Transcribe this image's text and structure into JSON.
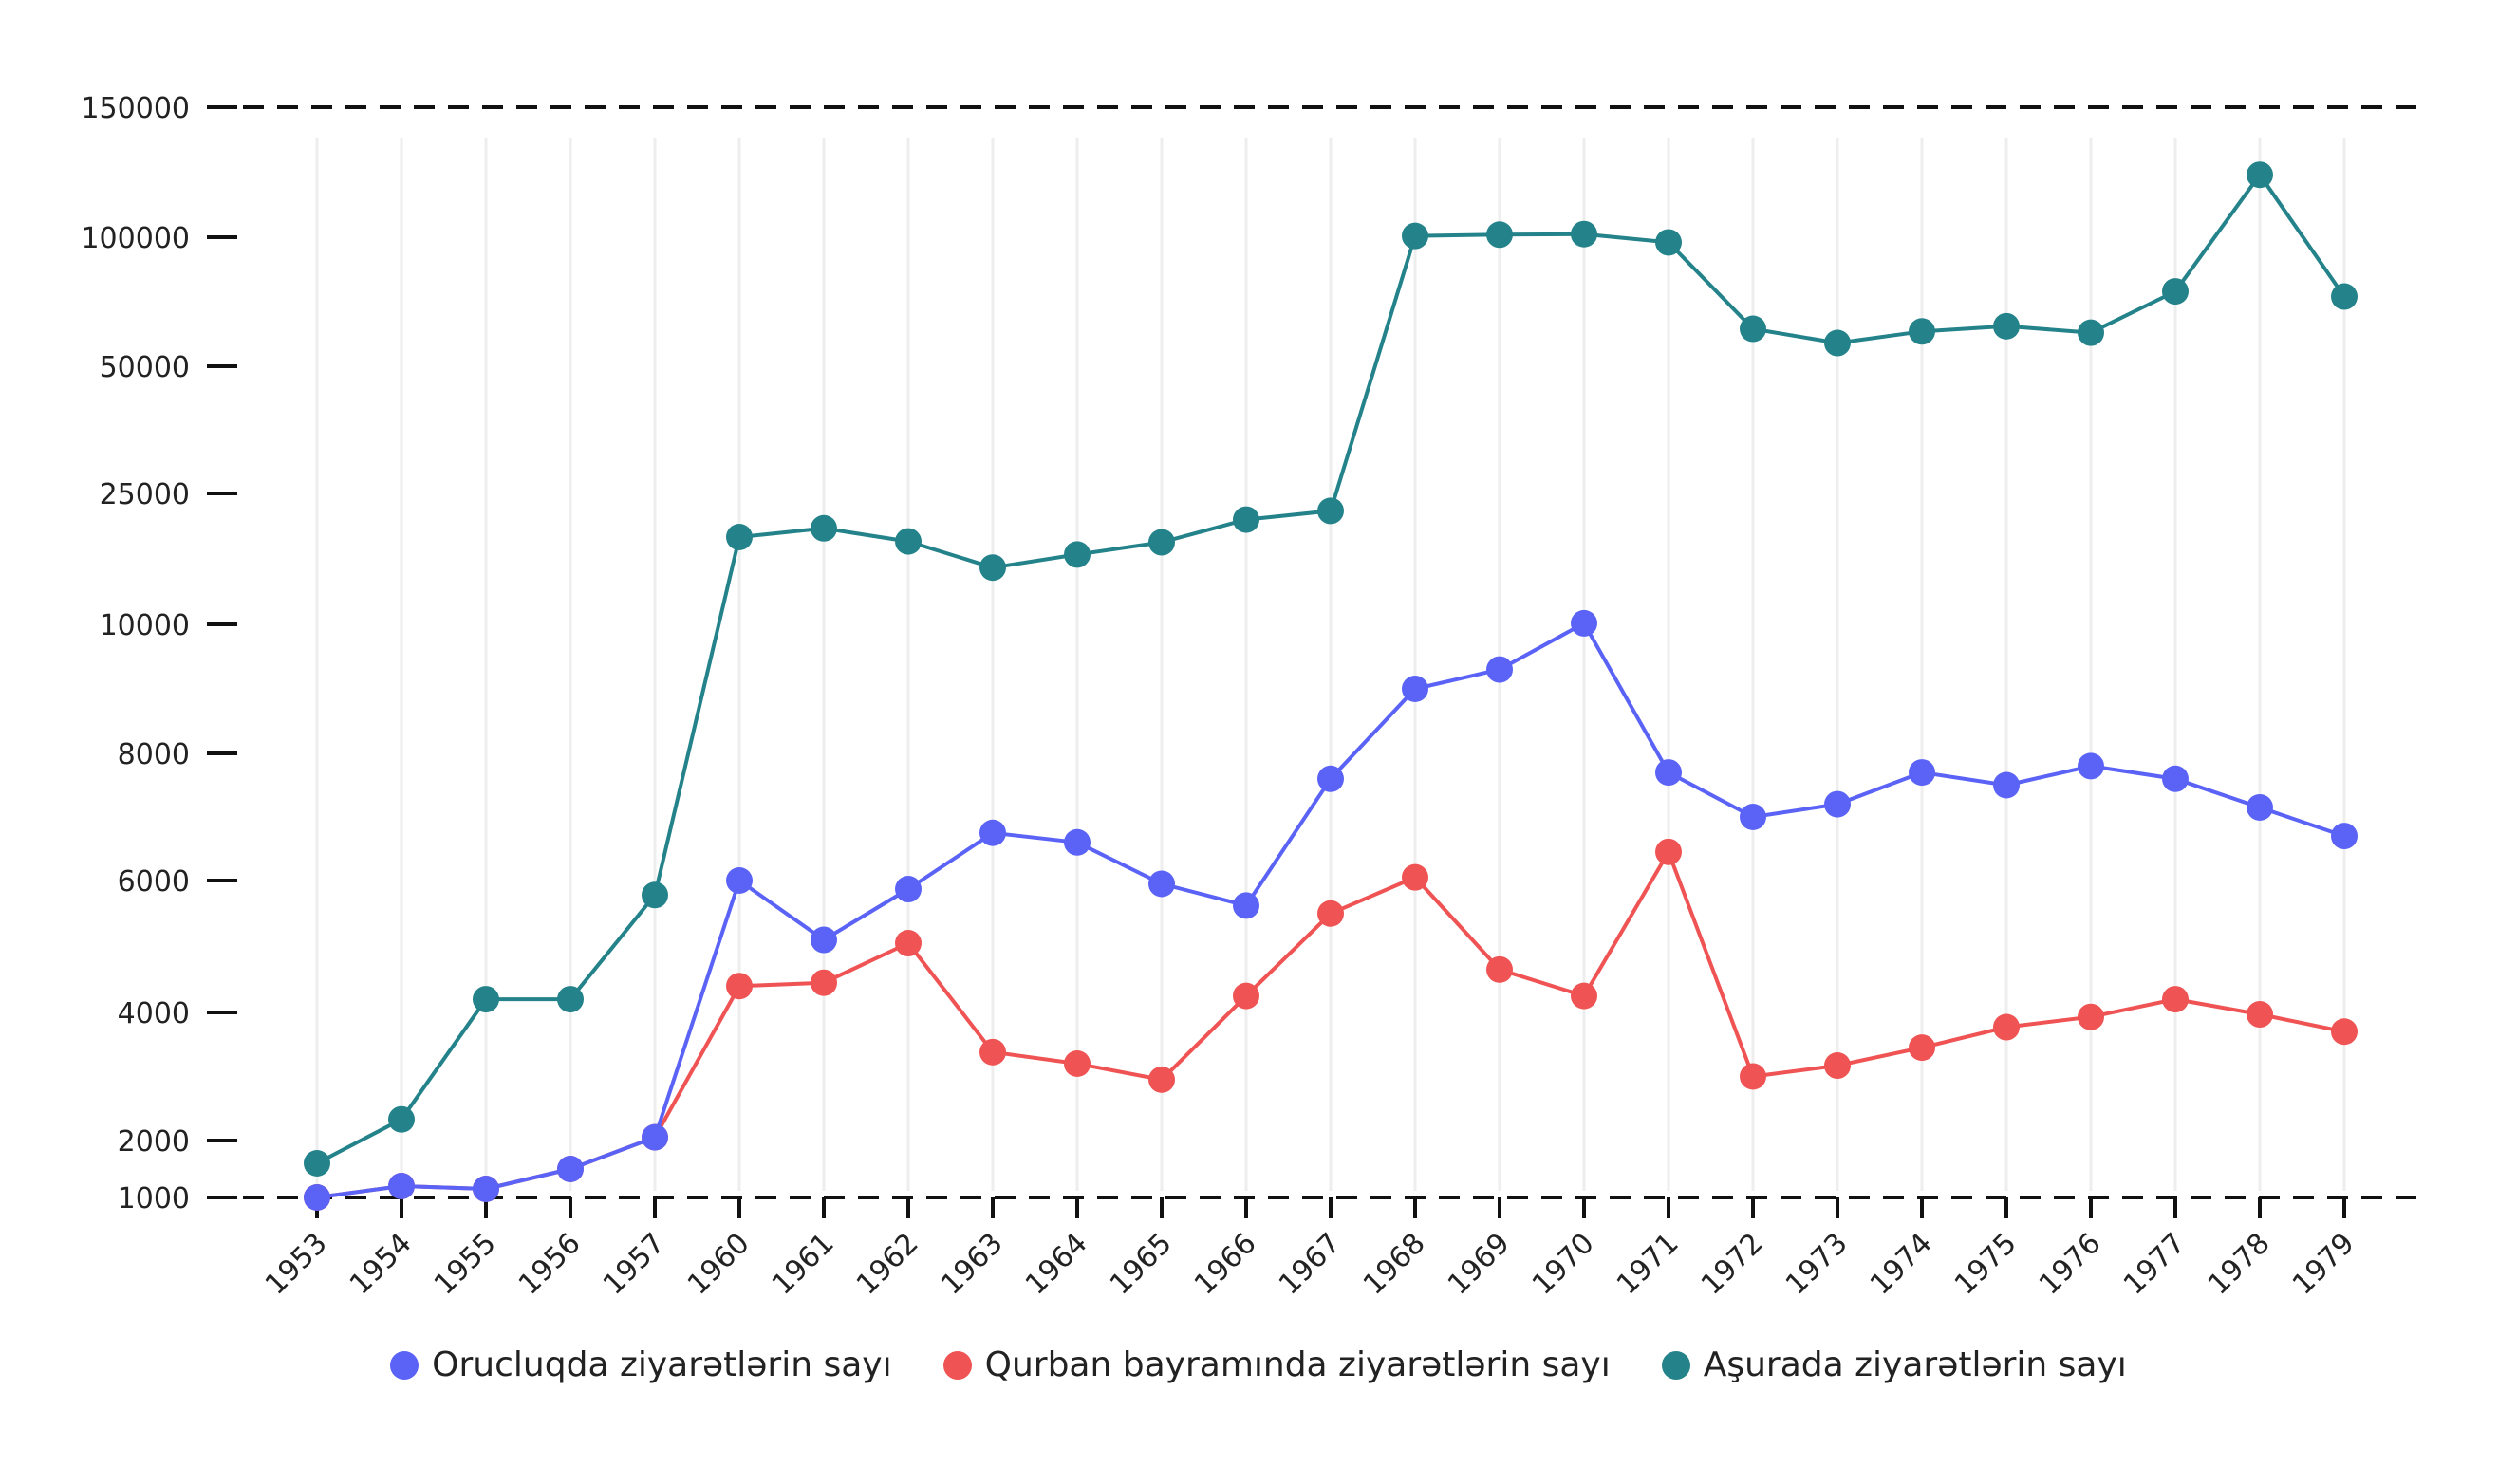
{
  "chart_data": {
    "type": "line",
    "categories": [
      "1953",
      "1954",
      "1955",
      "1956",
      "1957",
      "1960",
      "1961",
      "1962",
      "1963",
      "1964",
      "1965",
      "1966",
      "1967",
      "1968",
      "1969",
      "1970",
      "1971",
      "1972",
      "1973",
      "1974",
      "1975",
      "1976",
      "1977",
      "1978",
      "1979"
    ],
    "y_ticks": [
      1000,
      2000,
      4000,
      6000,
      8000,
      10000,
      25000,
      50000,
      100000,
      150000
    ],
    "y_tick_labels": [
      "1000",
      "2000",
      "4000",
      "6000",
      "8000",
      "10000",
      "25000",
      "50000",
      "100000",
      "150000"
    ],
    "y_scale": "piecewise-linear between labeled ticks",
    "grid": "vertical light lines at categories; dashed lines at 1000 and 150000",
    "legend_position": "bottom-center",
    "series": [
      {
        "name": "Orucluqda ziyarətlərin sayı",
        "color": "#5b63f6",
        "values": [
          1000,
          1200,
          1150,
          1500,
          2050,
          6000,
          5100,
          5870,
          6750,
          6600,
          5950,
          5620,
          7600,
          9000,
          9300,
          10120,
          7700,
          7000,
          7200,
          7700,
          7500,
          7800,
          7600,
          7150,
          6700
        ]
      },
      {
        "name": "Qurban bayramında ziyarətlərin sayı",
        "color": "#ef5353",
        "values": [
          1000,
          1200,
          1150,
          1500,
          2050,
          4400,
          4450,
          5050,
          3380,
          3200,
          2950,
          4250,
          5500,
          6050,
          4650,
          4250,
          6450,
          3000,
          3170,
          3450,
          3770,
          3930,
          4200,
          3970,
          3700
        ]
      },
      {
        "name": "Aşurada ziyarətlərin sayı",
        "color": "#24838a",
        "values": [
          1600,
          2330,
          4200,
          4200,
          5780,
          20000,
          21000,
          19500,
          16500,
          18000,
          19400,
          22000,
          23000,
          100500,
          101000,
          101200,
          98000,
          64500,
          59000,
          63500,
          65500,
          63000,
          79000,
          124000,
          77000
        ]
      }
    ]
  }
}
